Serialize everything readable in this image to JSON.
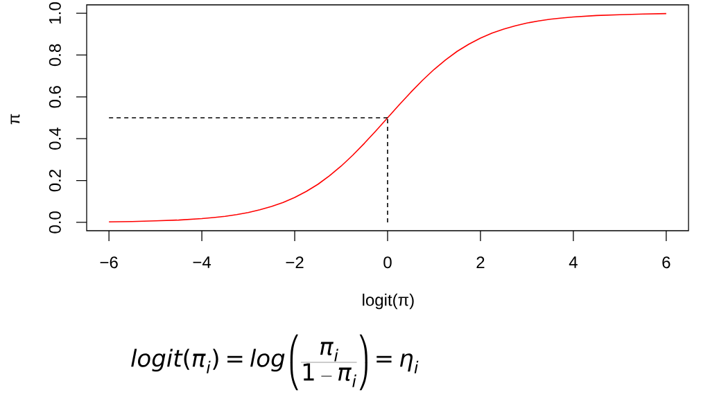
{
  "chart_data": {
    "type": "line",
    "xlabel": "logit(π)",
    "ylabel": "π",
    "xlim": [
      -6.48,
      6.48
    ],
    "ylim": [
      -0.04,
      1.04
    ],
    "xticks": [
      {
        "value": -6,
        "label": "−6"
      },
      {
        "value": -4,
        "label": "−4"
      },
      {
        "value": -2,
        "label": "−2"
      },
      0,
      2,
      4,
      6
    ],
    "yticks": [
      {
        "value": 0,
        "label": "0.0"
      },
      0.2,
      0.4,
      0.6,
      0.8,
      {
        "value": 1,
        "label": "1.0"
      }
    ],
    "series": [
      {
        "color": "#ff0000",
        "line_style": "solid",
        "x": [
          -6,
          -5.5,
          -5,
          -4.5,
          -4,
          -3.75,
          -3.5,
          -3.25,
          -3,
          -2.75,
          -2.5,
          -2.25,
          -2,
          -1.75,
          -1.5,
          -1.25,
          -1,
          -0.75,
          -0.5,
          -0.25,
          0,
          0.25,
          0.5,
          0.75,
          1,
          1.25,
          1.5,
          1.75,
          2,
          2.25,
          2.5,
          2.75,
          3,
          3.25,
          3.5,
          3.75,
          4,
          4.5,
          5,
          5.5,
          6
        ],
        "values": [
          0.002,
          0.004,
          0.007,
          0.011,
          0.018,
          0.023,
          0.029,
          0.037,
          0.047,
          0.06,
          0.076,
          0.095,
          0.119,
          0.148,
          0.182,
          0.223,
          0.269,
          0.321,
          0.378,
          0.438,
          0.5,
          0.562,
          0.622,
          0.679,
          0.731,
          0.777,
          0.818,
          0.852,
          0.881,
          0.905,
          0.924,
          0.94,
          0.953,
          0.963,
          0.971,
          0.977,
          0.982,
          0.989,
          0.993,
          0.996,
          0.998
        ]
      },
      {
        "color": "#000000",
        "line_style": "dashed",
        "x": [
          -6,
          0
        ],
        "values": [
          0.5,
          0.5
        ]
      },
      {
        "color": "#000000",
        "line_style": "dashed",
        "x": [
          0,
          0
        ],
        "values": [
          0,
          0.5
        ]
      }
    ],
    "annotations": [
      "logit(\\pi_i) = log\\left(\\frac{\\pi_i}{1 - \\pi_i}\\right) = \\eta_i"
    ]
  }
}
